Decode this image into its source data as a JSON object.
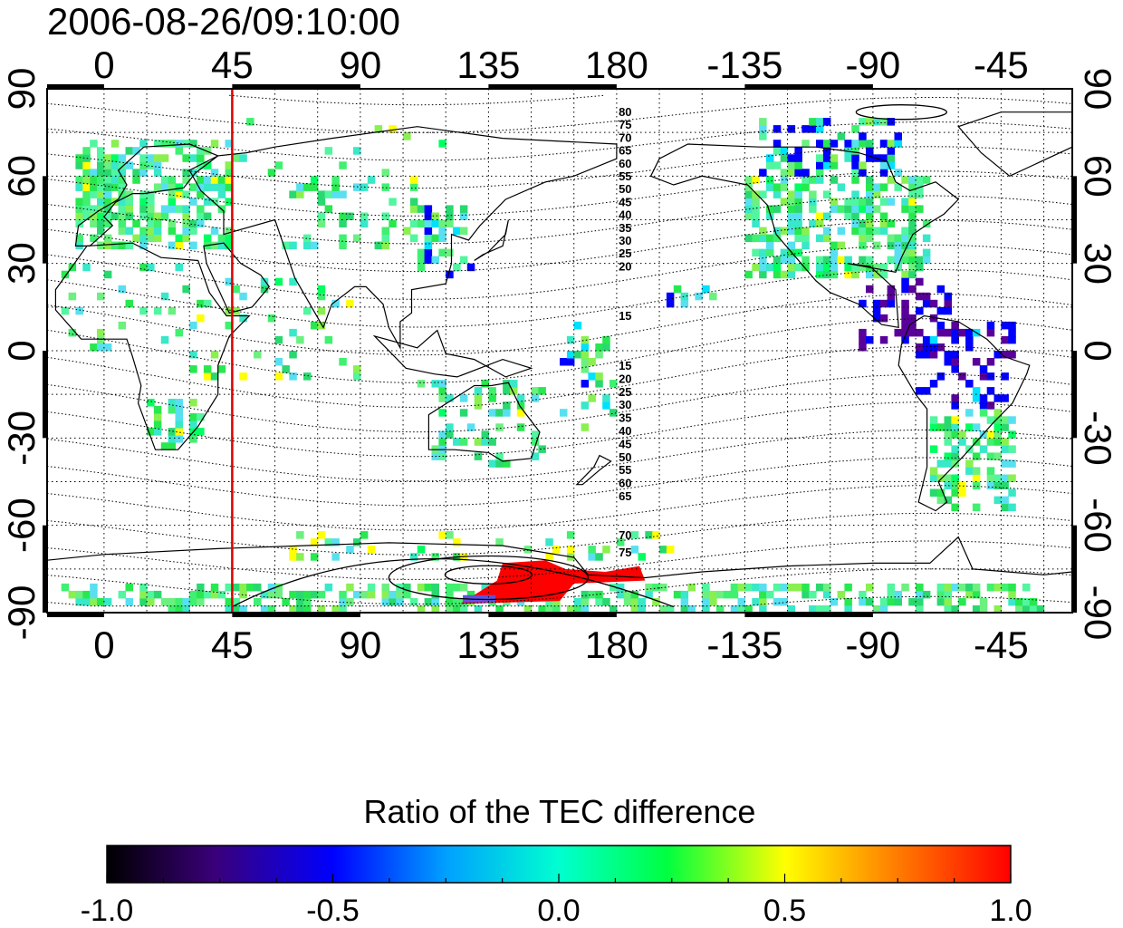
{
  "timestamp": "2006-08-26/09:10:00",
  "lon_ticks_top": [
    "0",
    "45",
    "90",
    "135",
    "180",
    "-135",
    "-90",
    "-45"
  ],
  "lon_ticks_bottom": [
    "0",
    "45",
    "90",
    "135",
    "180",
    "-135",
    "-90",
    "-45"
  ],
  "lat_ticks_left": [
    "90",
    "60",
    "30",
    "0",
    "-30",
    "-60",
    "-90"
  ],
  "lat_ticks_right": [
    "90",
    "60",
    "30",
    "0",
    "-30",
    "-60",
    "-90"
  ],
  "contour_labels_north": [
    "80",
    "75",
    "70",
    "65",
    "60",
    "55",
    "50",
    "45",
    "40",
    "35",
    "30",
    "25",
    "20",
    "15"
  ],
  "contour_labels_south": [
    "15",
    "20",
    "25",
    "30",
    "35",
    "40",
    "45",
    "50",
    "55",
    "60",
    "65",
    "70",
    "75"
  ],
  "colorbar": {
    "title": "Ratio of the TEC difference",
    "tick_labels": [
      "-1.0",
      "-0.5",
      "0.0",
      "0.5",
      "1.0"
    ],
    "range": [
      -1.0,
      1.0
    ]
  },
  "map_extent": {
    "lon_start": -20,
    "lon_end": 340,
    "lat_range": [
      -90,
      90
    ]
  },
  "marker_line_lon": 45,
  "colors": {
    "marker_line": "#dd0000",
    "scale": [
      "#000000",
      "#5a009a",
      "#0000ff",
      "#00e0ff",
      "#00ff60",
      "#ffff00",
      "#ff8000",
      "#ff0000"
    ]
  }
}
